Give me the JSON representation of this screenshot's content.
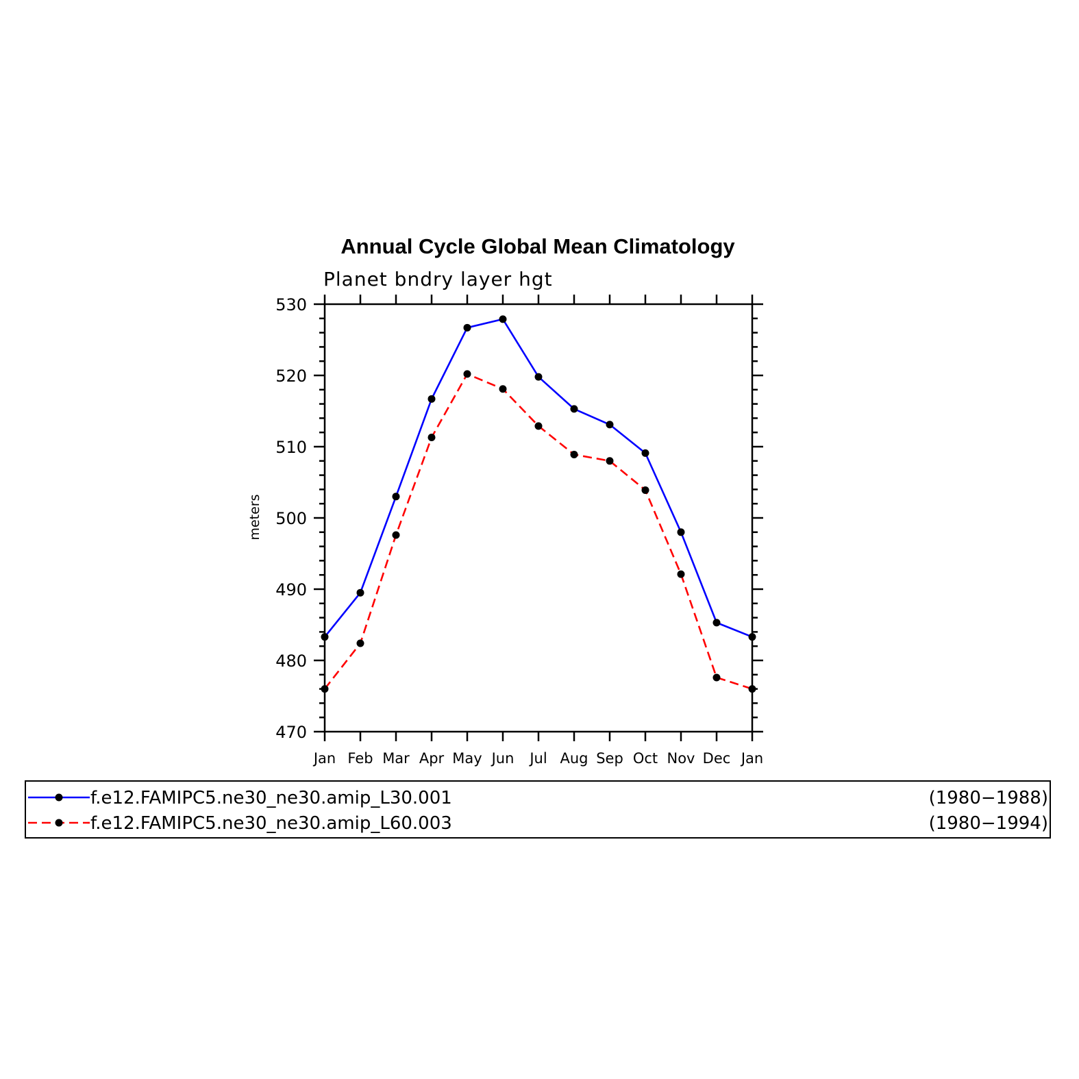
{
  "chart_data": {
    "type": "line",
    "title": "Annual Cycle Global Mean Climatology",
    "subtitle": "Planet bndry layer hgt",
    "ylabel": "meters",
    "xlabel": "",
    "categories": [
      "Jan",
      "Feb",
      "Mar",
      "Apr",
      "May",
      "Jun",
      "Jul",
      "Aug",
      "Sep",
      "Oct",
      "Nov",
      "Dec",
      "Jan"
    ],
    "ylim": [
      470,
      530
    ],
    "yticks": [
      470,
      480,
      490,
      500,
      510,
      520,
      530
    ],
    "grid": false,
    "legend_position": "bottom",
    "series": [
      {
        "name": "f.e12.FAMIPC5.ne30_ne30.amip_L30.001",
        "years": "(1980−1988)",
        "color": "#0000ff",
        "dash": "solid",
        "values": [
          483.3,
          489.5,
          503.0,
          516.7,
          526.7,
          527.9,
          519.8,
          515.3,
          513.1,
          509.1,
          498.0,
          485.3,
          483.3
        ]
      },
      {
        "name": "f.e12.FAMIPC5.ne30_ne30.amip_L60.003",
        "years": "(1980−1994)",
        "color": "#ff0000",
        "dash": "dashed",
        "values": [
          476.0,
          482.4,
          497.6,
          511.3,
          520.2,
          518.1,
          512.9,
          508.9,
          508.0,
          503.9,
          492.1,
          477.6,
          476.0
        ]
      }
    ]
  }
}
